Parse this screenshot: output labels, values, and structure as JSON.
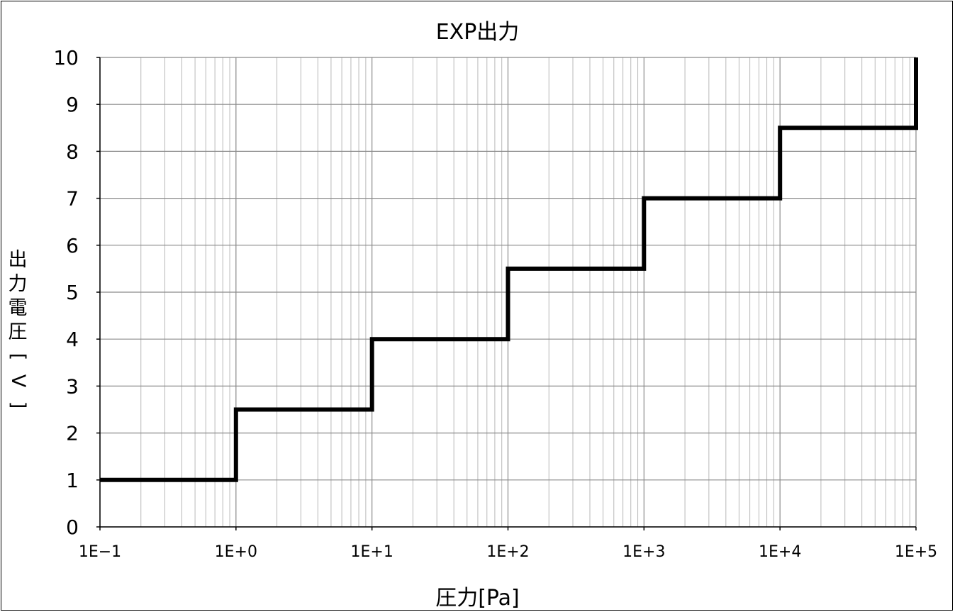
{
  "chart_data": {
    "type": "line",
    "title": "EXP出力",
    "xlabel": "圧力[Pa]",
    "ylabel": "出力電圧[V]",
    "x_scale": "log",
    "xlim": [
      0.1,
      100000
    ],
    "ylim": [
      0,
      10
    ],
    "x_tick_labels": [
      "1E−1",
      "1E+0",
      "1E+1",
      "1E+2",
      "1E+3",
      "1E+4",
      "1E+5"
    ],
    "x_ticks": [
      0.1,
      1,
      10,
      100,
      1000,
      10000,
      100000
    ],
    "y_ticks": [
      0,
      1,
      2,
      3,
      4,
      5,
      6,
      7,
      8,
      9,
      10
    ],
    "grid": true,
    "line_color": "#000000",
    "series": [
      {
        "x": [
          0.1,
          1,
          1,
          10,
          10,
          100,
          100,
          1000,
          1000,
          10000,
          10000,
          100000,
          100000
        ],
        "y": [
          1,
          1,
          2.5,
          2.5,
          4,
          4,
          5.5,
          5.5,
          7,
          7,
          8.5,
          8.5,
          10
        ]
      }
    ]
  }
}
